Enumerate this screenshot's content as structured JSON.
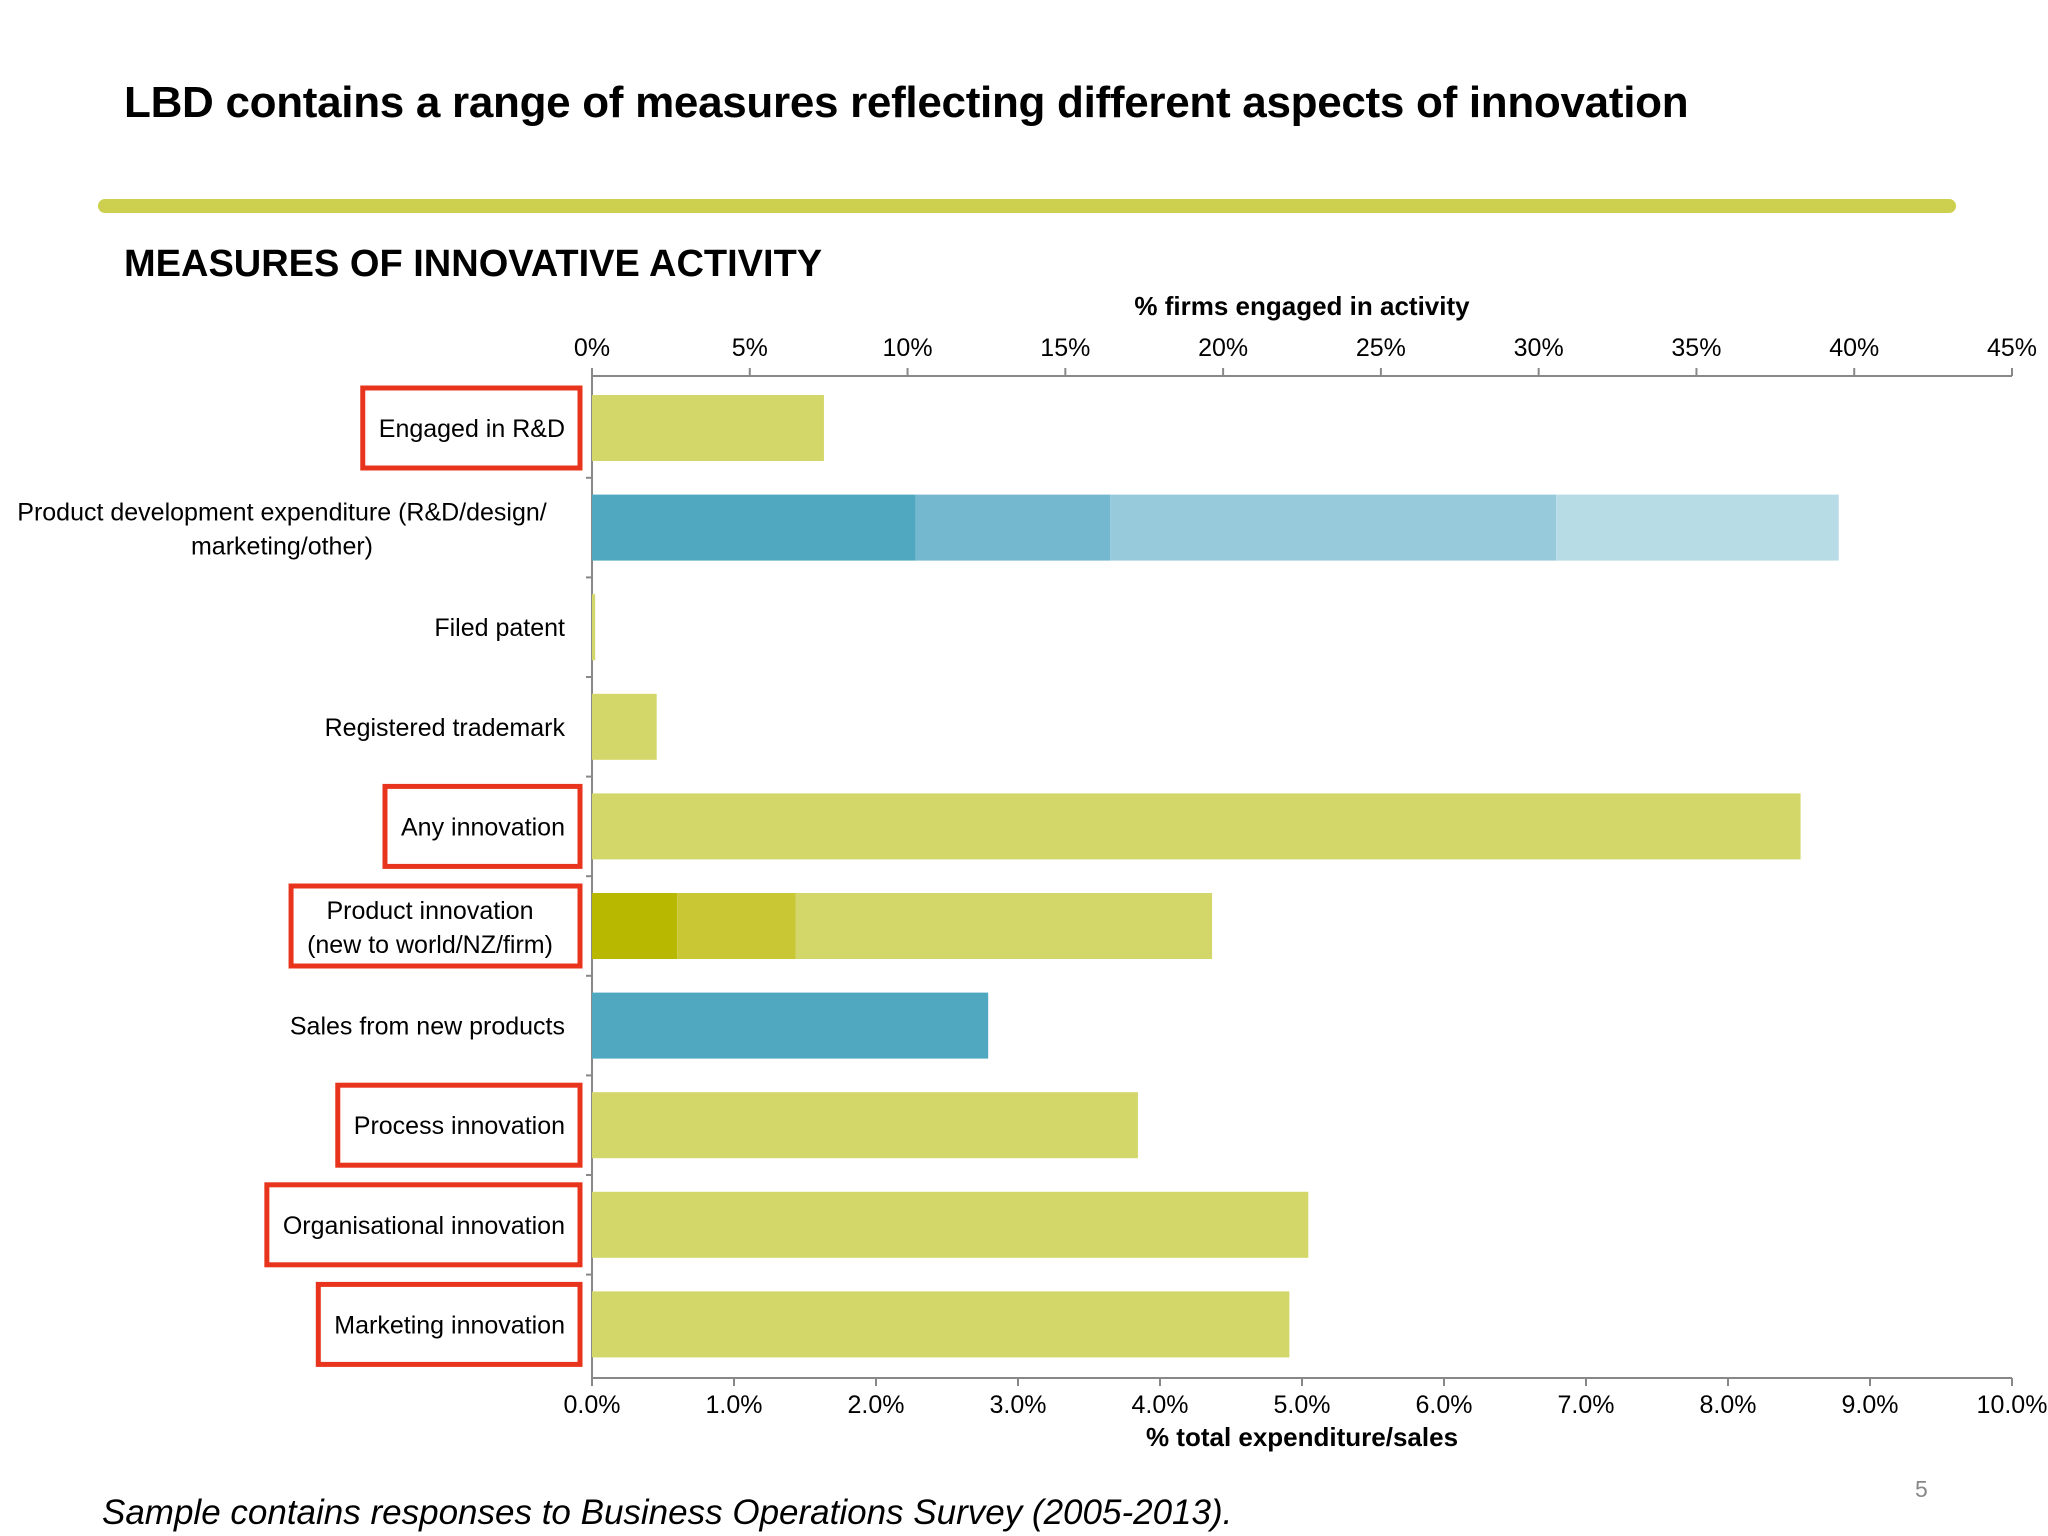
{
  "slide": {
    "title": "LBD contains a range of measures reflecting different aspects of innovation",
    "subtitle": "MEASURES OF INNOVATIVE ACTIVITY",
    "footnote": "Sample contains responses to Business Operations Survey (2005-2013).",
    "page_number": "5"
  },
  "colors": {
    "rule": "#cdd04f",
    "green": "#d3d669",
    "green_dark": "#b8b800",
    "green_mid": "#c9c834",
    "blue_1": "#4fa8c0",
    "blue_2": "#74b8cf",
    "blue_3": "#97cadb",
    "blue_4": "#b8dce6",
    "highlight_box": "#e8341c",
    "axis": "#888888"
  },
  "chart_data": {
    "type": "bar",
    "orientation": "horizontal",
    "stacked": true,
    "top_axis": {
      "label": "% firms engaged in activity",
      "range": [
        0,
        45
      ],
      "ticks": [
        "0%",
        "5%",
        "10%",
        "15%",
        "20%",
        "25%",
        "30%",
        "35%",
        "40%",
        "45%"
      ]
    },
    "bottom_axis": {
      "label": "% total expenditure/sales",
      "range": [
        0,
        10
      ],
      "ticks": [
        "0.0%",
        "1.0%",
        "2.0%",
        "3.0%",
        "4.0%",
        "5.0%",
        "6.0%",
        "7.0%",
        "8.0%",
        "9.0%",
        "10.0%"
      ]
    },
    "categories": [
      {
        "label": "Engaged in R&D",
        "axis": "top",
        "highlighted": true,
        "segments": [
          {
            "value": 7.35,
            "color": "green"
          }
        ]
      },
      {
        "label": "Product development expenditure (R&D/design/ marketing/other)",
        "axis": "bottom",
        "highlighted": false,
        "segments": [
          {
            "value": 2.28,
            "color": "blue_1"
          },
          {
            "value": 1.37,
            "color": "blue_2"
          },
          {
            "value": 3.14,
            "color": "blue_3"
          },
          {
            "value": 1.99,
            "color": "blue_4"
          }
        ]
      },
      {
        "label": "Filed patent",
        "axis": "top",
        "highlighted": false,
        "segments": [
          {
            "value": 0.1,
            "color": "green"
          }
        ]
      },
      {
        "label": "Registered trademark",
        "axis": "top",
        "highlighted": false,
        "segments": [
          {
            "value": 2.05,
            "color": "green"
          }
        ]
      },
      {
        "label": "Any innovation",
        "axis": "top",
        "highlighted": true,
        "segments": [
          {
            "value": 38.3,
            "color": "green"
          }
        ]
      },
      {
        "label": "Product innovation (new to world/NZ/firm)",
        "axis": "top",
        "highlighted": true,
        "segments": [
          {
            "value": 2.7,
            "color": "green_dark"
          },
          {
            "value": 3.75,
            "color": "green_mid"
          },
          {
            "value": 13.2,
            "color": "green"
          }
        ]
      },
      {
        "label": "Sales from new products",
        "axis": "bottom",
        "highlighted": false,
        "segments": [
          {
            "value": 2.79,
            "color": "blue_1"
          }
        ]
      },
      {
        "label": "Process innovation",
        "axis": "top",
        "highlighted": true,
        "segments": [
          {
            "value": 17.3,
            "color": "green"
          }
        ]
      },
      {
        "label": "Organisational innovation",
        "axis": "top",
        "highlighted": true,
        "segments": [
          {
            "value": 22.7,
            "color": "green"
          }
        ]
      },
      {
        "label": "Marketing innovation",
        "axis": "top",
        "highlighted": true,
        "segments": [
          {
            "value": 22.1,
            "color": "green"
          }
        ]
      }
    ]
  }
}
